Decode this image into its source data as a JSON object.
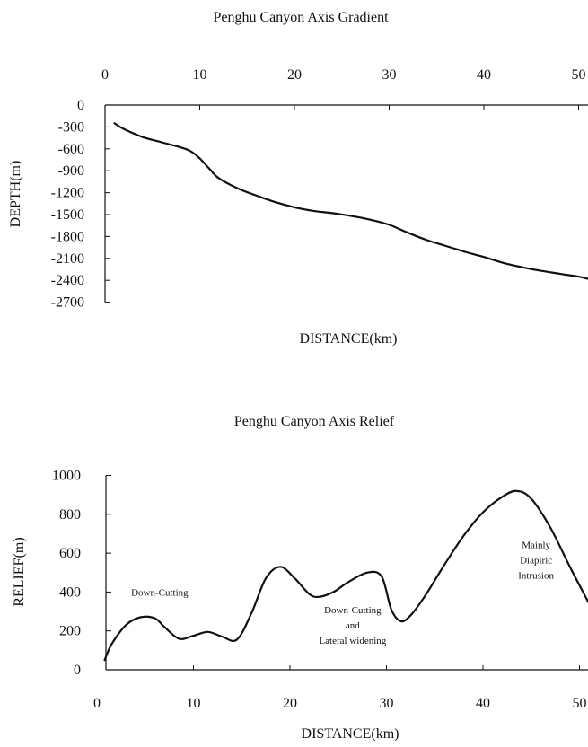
{
  "chart_data": [
    {
      "type": "line",
      "title": "Penghu Canyon Axis Gradient",
      "xlabel": "DISTANCE(km)",
      "ylabel": "DEPTH(m)",
      "x_ticks": [
        "0",
        "10",
        "20",
        "30",
        "40",
        "50"
      ],
      "y_ticks": [
        "0",
        "-300",
        "-600",
        "-900",
        "-1200",
        "-1500",
        "-1800",
        "-2100",
        "-2400",
        "-2700"
      ],
      "xlim": [
        0,
        51
      ],
      "ylim": [
        -2700,
        0
      ],
      "x_axis_position": "top",
      "grid": false,
      "series": [
        {
          "x": [
            1,
            2,
            4,
            6,
            8,
            9,
            10,
            11,
            12,
            14,
            16,
            18,
            20,
            22,
            24,
            26,
            28,
            30,
            32,
            34,
            36,
            38,
            40,
            42,
            44,
            46,
            48,
            50,
            51
          ],
          "y": [
            -250,
            -330,
            -440,
            -510,
            -580,
            -630,
            -730,
            -870,
            -1000,
            -1140,
            -1240,
            -1330,
            -1400,
            -1450,
            -1480,
            -1520,
            -1570,
            -1640,
            -1750,
            -1850,
            -1930,
            -2010,
            -2080,
            -2160,
            -2220,
            -2270,
            -2310,
            -2350,
            -2380
          ]
        }
      ]
    },
    {
      "type": "line",
      "title": "Penghu Canyon Axis Relief",
      "xlabel": "DISTANCE(km)",
      "ylabel": "RELIEF(m)",
      "x_ticks": [
        "0",
        "10",
        "20",
        "30",
        "40",
        "50"
      ],
      "y_ticks": [
        "0",
        "200",
        "400",
        "600",
        "800",
        "1000"
      ],
      "xlim": [
        0,
        51
      ],
      "ylim": [
        0,
        1000
      ],
      "grid": false,
      "series": [
        {
          "x": [
            0.8,
            1.5,
            3,
            4.5,
            6,
            7,
            8.5,
            10,
            11.5,
            13,
            14.5,
            16,
            17.5,
            19,
            20.5,
            22,
            23,
            24.5,
            26,
            28,
            29.5,
            30.5,
            31.5,
            32.5,
            34,
            36,
            38,
            40,
            42,
            43.5,
            45,
            47,
            49,
            51
          ],
          "y": [
            50,
            130,
            230,
            270,
            265,
            220,
            160,
            175,
            195,
            170,
            155,
            290,
            470,
            530,
            470,
            390,
            375,
            400,
            450,
            500,
            480,
            310,
            250,
            280,
            380,
            540,
            690,
            810,
            890,
            920,
            880,
            730,
            530,
            340
          ]
        }
      ],
      "annotations": [
        {
          "text": "Down-Cutting",
          "x": 6.5,
          "y": 380
        },
        {
          "lines": [
            "Down-Cutting",
            "and",
            "Lateral widening"
          ],
          "x": 26.5,
          "y": 290
        },
        {
          "lines": [
            "Mainly",
            "Diapiric",
            "Intrusion"
          ],
          "x": 45.5,
          "y": 625
        }
      ]
    }
  ]
}
